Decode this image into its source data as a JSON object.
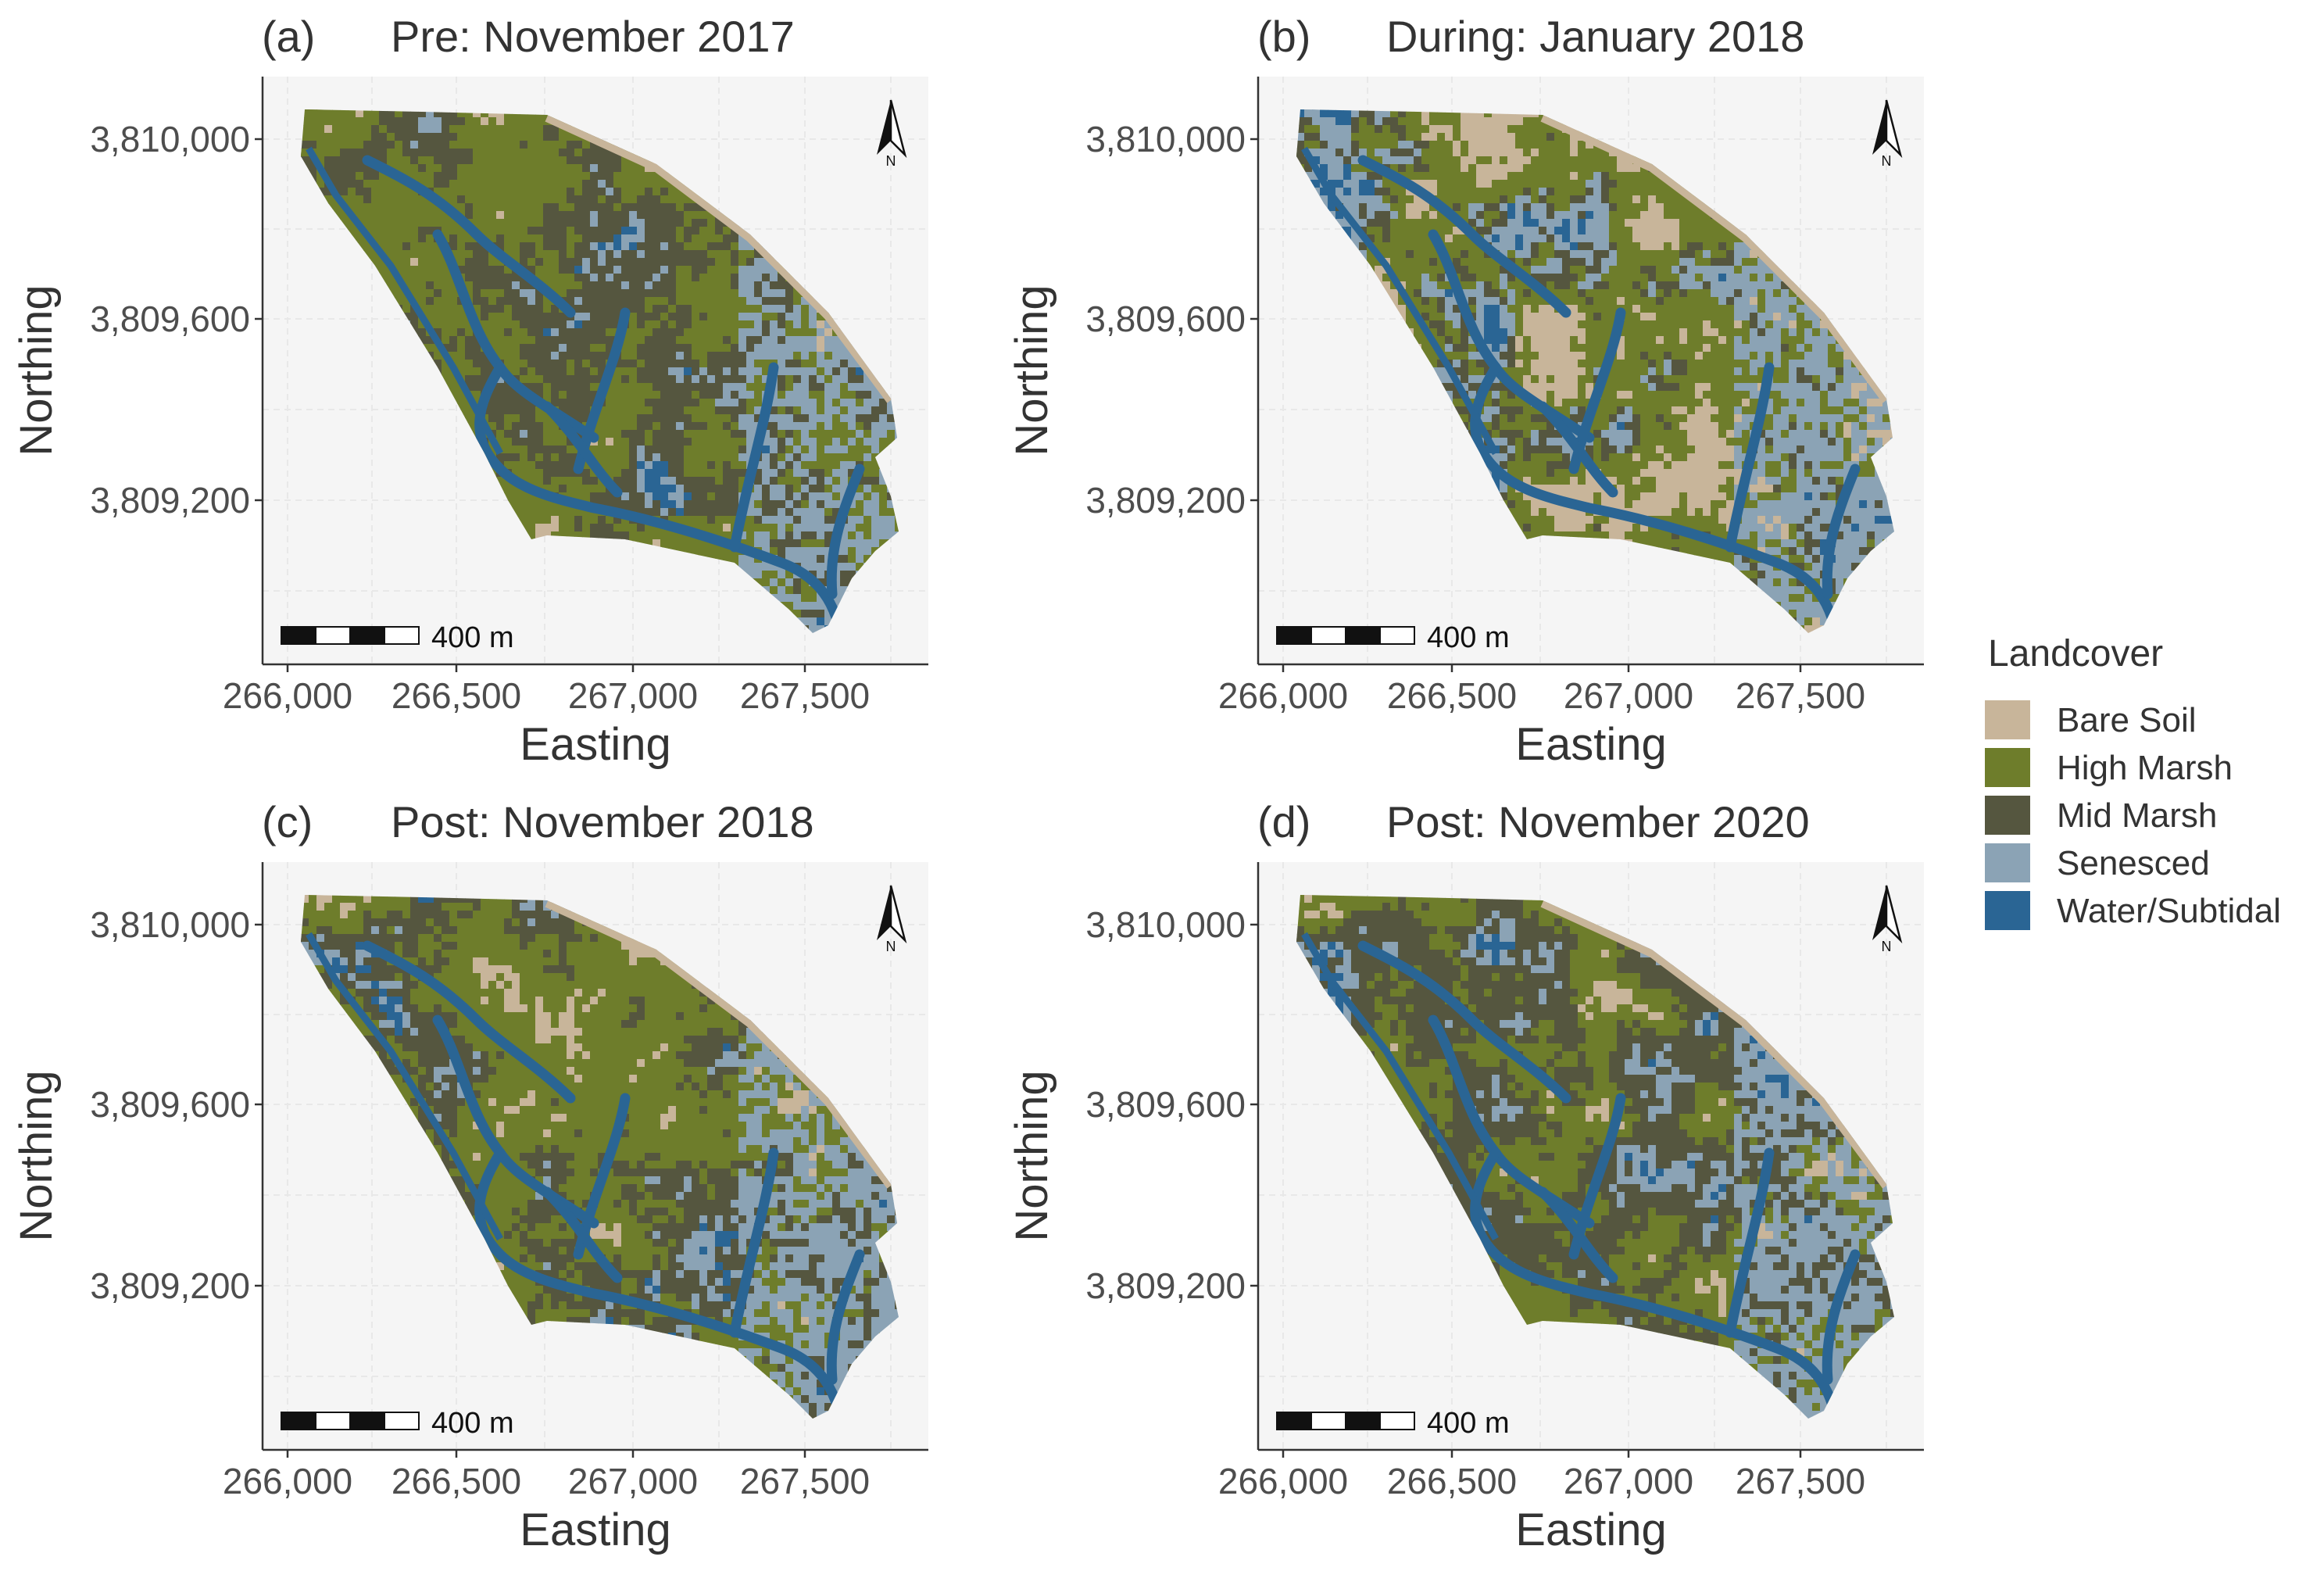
{
  "axes": {
    "x_title": "Easting",
    "y_title": "Northing",
    "x_ticks": [
      "266,000",
      "266,500",
      "267,000",
      "267,500"
    ],
    "y_ticks": [
      "3,810,000",
      "3,809,600",
      "3,809,200"
    ]
  },
  "scale_bar": {
    "label": "400 m"
  },
  "north_arrow": {
    "label": "N"
  },
  "panels": [
    {
      "tag": "(a)",
      "title": "Pre: November 2017",
      "cover_weights": {
        "bare_soil": 0.06,
        "high_marsh": 0.44,
        "mid_marsh": 0.28,
        "senesced": 0.1,
        "water": 0.12
      }
    },
    {
      "tag": "(b)",
      "title": "During: January 2018",
      "cover_weights": {
        "bare_soil": 0.3,
        "high_marsh": 0.3,
        "mid_marsh": 0.1,
        "senesced": 0.18,
        "water": 0.12
      }
    },
    {
      "tag": "(c)",
      "title": "Post: November 2018",
      "cover_weights": {
        "bare_soil": 0.12,
        "high_marsh": 0.4,
        "mid_marsh": 0.24,
        "senesced": 0.12,
        "water": 0.12
      }
    },
    {
      "tag": "(d)",
      "title": "Post: November 2020",
      "cover_weights": {
        "bare_soil": 0.12,
        "high_marsh": 0.32,
        "mid_marsh": 0.32,
        "senesced": 0.14,
        "water": 0.1
      }
    }
  ],
  "legend": {
    "title": "Landcover",
    "items": [
      {
        "label": "Bare Soil",
        "color": "#c8b59a"
      },
      {
        "label": "High Marsh",
        "color": "#6e7d2b"
      },
      {
        "label": "Mid Marsh",
        "color": "#55563f"
      },
      {
        "label": "Senesced",
        "color": "#8ba3b5"
      },
      {
        "label": "Water/Subtidal",
        "color": "#2a6594"
      }
    ]
  },
  "colors": {
    "panel_background": "#f5f5f5",
    "grid": "#e8e8e8",
    "axis": "#333333"
  }
}
